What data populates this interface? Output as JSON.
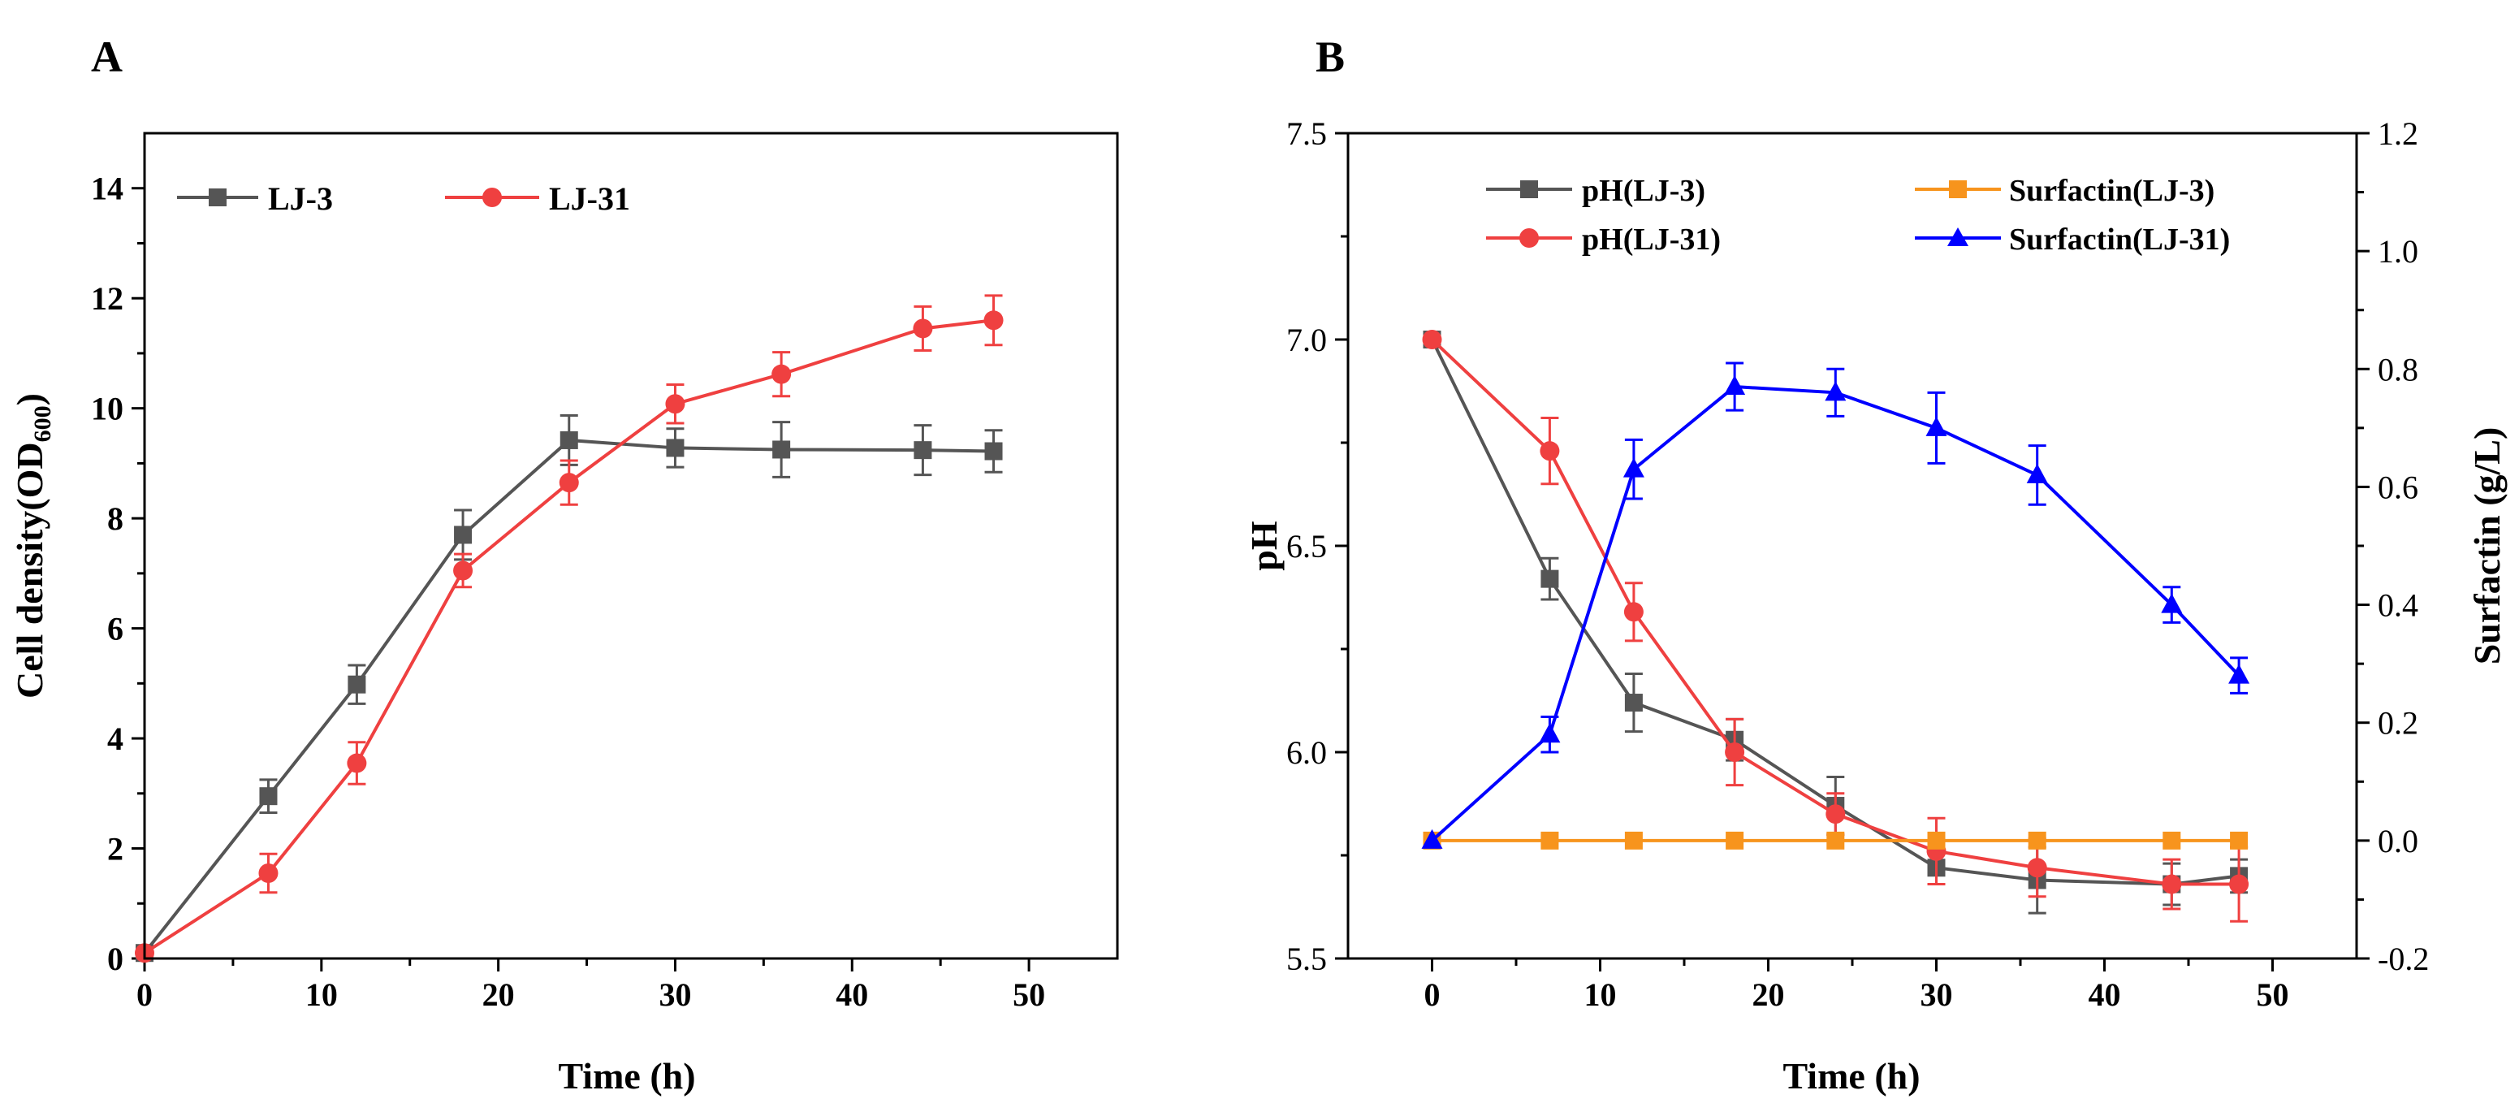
{
  "chart_data": [
    {
      "panel_label": "A",
      "type": "line",
      "xlabel": "Time (h)",
      "ylabel_main": "Cell density(OD",
      "ylabel_sub": "600",
      "ylabel_close": ")",
      "xlim": [
        0,
        55
      ],
      "ylim": [
        0,
        15
      ],
      "xticks": [
        "0",
        "10",
        "20",
        "30",
        "40",
        "50"
      ],
      "yticks": [
        "0",
        "2",
        "4",
        "6",
        "8",
        "10",
        "12",
        "14"
      ],
      "legend_position": "top-left",
      "series": [
        {
          "name": "LJ-3",
          "color": "#555555",
          "marker": "square",
          "x": [
            0,
            7,
            12,
            18,
            24,
            30,
            36,
            44,
            48
          ],
          "y": [
            0.1,
            2.95,
            4.98,
            7.7,
            9.42,
            9.28,
            9.25,
            9.24,
            9.22
          ],
          "err": [
            0.05,
            0.3,
            0.35,
            0.45,
            0.45,
            0.35,
            0.5,
            0.45,
            0.38
          ]
        },
        {
          "name": "LJ-31",
          "color": "#ef4040",
          "marker": "circle",
          "x": [
            0,
            7,
            12,
            18,
            24,
            30,
            36,
            44,
            48
          ],
          "y": [
            0.1,
            1.55,
            3.55,
            7.05,
            8.65,
            10.08,
            10.62,
            11.45,
            11.6
          ],
          "err": [
            0.05,
            0.35,
            0.38,
            0.3,
            0.4,
            0.35,
            0.4,
            0.4,
            0.45
          ]
        }
      ]
    },
    {
      "panel_label": "B",
      "type": "line",
      "xlabel": "Time (h)",
      "ylabel_left": "pH",
      "ylabel_right": "Surfactin (g/L)",
      "xlim": [
        -5,
        55
      ],
      "ylim_left": [
        5.5,
        7.5
      ],
      "ylim_right": [
        -0.2,
        1.2
      ],
      "xticks": [
        "0",
        "10",
        "20",
        "30",
        "40",
        "50"
      ],
      "yticks_left": [
        "5.5",
        "6.0",
        "6.5",
        "7.0",
        "7.5"
      ],
      "yticks_right": [
        "-0.2",
        "0.0",
        "0.2",
        "0.4",
        "0.6",
        "0.8",
        "1.0",
        "1.2"
      ],
      "legend_position": "top",
      "series": [
        {
          "name": "pH(LJ-3)",
          "axis": "left",
          "color": "#555555",
          "marker": "square",
          "x": [
            0,
            7,
            12,
            18,
            24,
            30,
            36,
            44,
            48
          ],
          "y": [
            7.0,
            6.42,
            6.12,
            6.03,
            5.87,
            5.72,
            5.69,
            5.68,
            5.7
          ],
          "err": [
            0.01,
            0.05,
            0.07,
            0.05,
            0.07,
            0.04,
            0.08,
            0.05,
            0.04
          ]
        },
        {
          "name": "pH(LJ-31)",
          "axis": "left",
          "color": "#ef4040",
          "marker": "circle",
          "x": [
            0,
            7,
            12,
            18,
            24,
            30,
            36,
            44,
            48
          ],
          "y": [
            7.0,
            6.73,
            6.34,
            6.0,
            5.85,
            5.76,
            5.72,
            5.68,
            5.68
          ],
          "err": [
            0.01,
            0.08,
            0.07,
            0.08,
            0.05,
            0.08,
            0.07,
            0.06,
            0.09
          ]
        },
        {
          "name": "Surfactin(LJ-3)",
          "axis": "right",
          "color": "#f7941d",
          "marker": "square",
          "x": [
            0,
            7,
            12,
            18,
            24,
            30,
            36,
            44,
            48
          ],
          "y": [
            0,
            0,
            0,
            0,
            0,
            0,
            0,
            0,
            0
          ],
          "err": [
            0,
            0,
            0,
            0,
            0,
            0,
            0,
            0,
            0
          ]
        },
        {
          "name": "Surfactin(LJ-31)",
          "axis": "right",
          "color": "#0000ff",
          "marker": "triangle",
          "x": [
            0,
            7,
            12,
            18,
            24,
            30,
            36,
            44,
            48
          ],
          "y": [
            0.0,
            0.18,
            0.63,
            0.77,
            0.76,
            0.7,
            0.62,
            0.4,
            0.28
          ],
          "err": [
            0.01,
            0.03,
            0.05,
            0.04,
            0.04,
            0.06,
            0.05,
            0.03,
            0.03
          ]
        }
      ]
    }
  ]
}
